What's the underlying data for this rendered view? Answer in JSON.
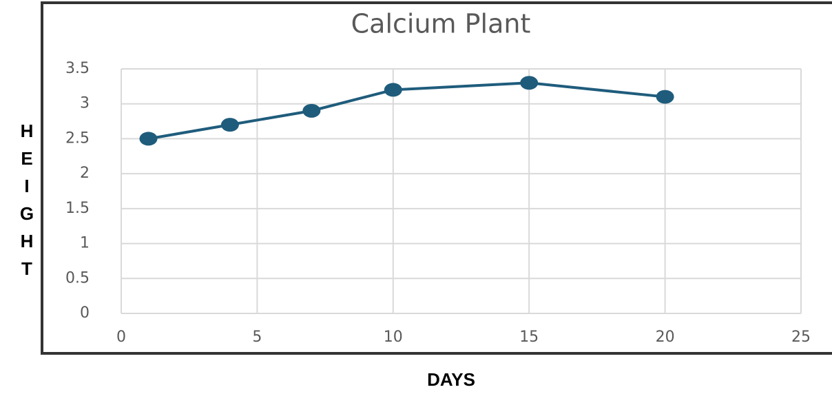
{
  "chart_data": {
    "type": "line",
    "title": "Calcium Plant",
    "x_label": "DAYS",
    "y_label": "HEIGHT",
    "x": [
      1,
      4,
      7,
      10,
      15,
      20
    ],
    "values": [
      2.5,
      2.7,
      2.9,
      3.2,
      3.3,
      3.1
    ],
    "color": "#1f5c7c",
    "xlim": [
      0,
      25
    ],
    "xticks": [
      0,
      5,
      10,
      15,
      20,
      25
    ],
    "ylim": [
      0,
      3.5
    ],
    "yticks": [
      0,
      0.5,
      1,
      1.5,
      2,
      2.5,
      3,
      3.5
    ],
    "grid": true
  }
}
